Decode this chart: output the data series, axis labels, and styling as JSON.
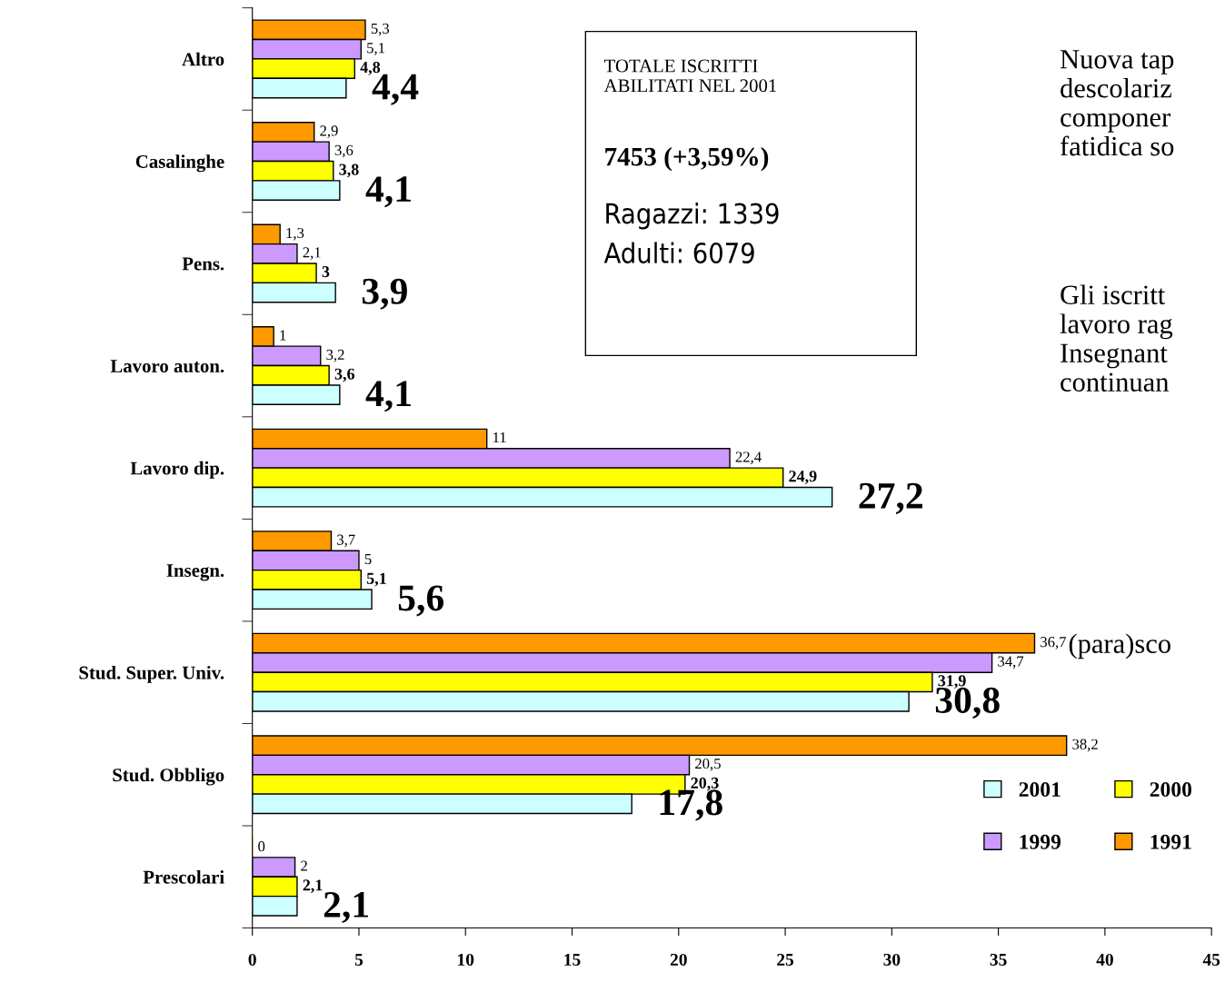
{
  "chart_data": {
    "type": "bar",
    "orientation": "horizontal",
    "categories": [
      "Altro",
      "Casalinghe",
      "Pens.",
      "Lavoro auton.",
      "Lavoro dip.",
      "Insegn.",
      "Stud. Super. Univ.",
      "Stud. Obbligo",
      "Prescolari"
    ],
    "series": [
      {
        "name": "1991",
        "color": "#ff9900",
        "values": [
          5.3,
          2.9,
          1.3,
          1,
          11,
          3.7,
          36.7,
          38.2,
          0
        ],
        "value_labels": [
          "5,3",
          "2,9",
          "1,3",
          "1",
          "11",
          "3,7",
          "36,7",
          "38,2",
          "0"
        ]
      },
      {
        "name": "1999",
        "color": "#cc99ff",
        "values": [
          5.1,
          3.6,
          2.1,
          3.2,
          22.4,
          5,
          34.7,
          20.5,
          2
        ],
        "value_labels": [
          "5,1",
          "3,6",
          "2,1",
          "3,2",
          "22,4",
          "5",
          "34,7",
          "20,5",
          "2"
        ]
      },
      {
        "name": "2000",
        "color": "#ffff00",
        "values": [
          4.8,
          3.8,
          3,
          3.6,
          24.9,
          5.1,
          31.9,
          20.3,
          2.1
        ],
        "value_labels": [
          "4,8",
          "3,8",
          "3",
          "3,6",
          "24,9",
          "5,1",
          "31,9",
          "20,3",
          "2,1"
        ]
      },
      {
        "name": "2001",
        "color": "#ccffff",
        "values": [
          4.4,
          4.1,
          3.9,
          4.1,
          27.2,
          5.6,
          30.8,
          17.8,
          2.1
        ],
        "value_labels": [
          "4,4",
          "4,1",
          "3,9",
          "4,1",
          "27,2",
          "5,6",
          "30,8",
          "17,8",
          "2,1"
        ]
      }
    ],
    "xlim": [
      0,
      45
    ],
    "xticks": [
      0,
      5,
      10,
      15,
      20,
      25,
      30,
      35,
      40,
      45
    ],
    "grid": false,
    "legend": "bottom right",
    "annotations": [
      "TOTALE ISCRITTI\nABILITATI NEL 2001",
      "7453 (+3,59%)",
      "Ragazzi: 1339\nAdulti: 6079",
      "Nuova tap\ndescolariz\ncomponer\nfatidica so",
      "Gli iscritt\nlavoro rag\nInsegnant\ncontinuan",
      "(para)sco"
    ]
  }
}
